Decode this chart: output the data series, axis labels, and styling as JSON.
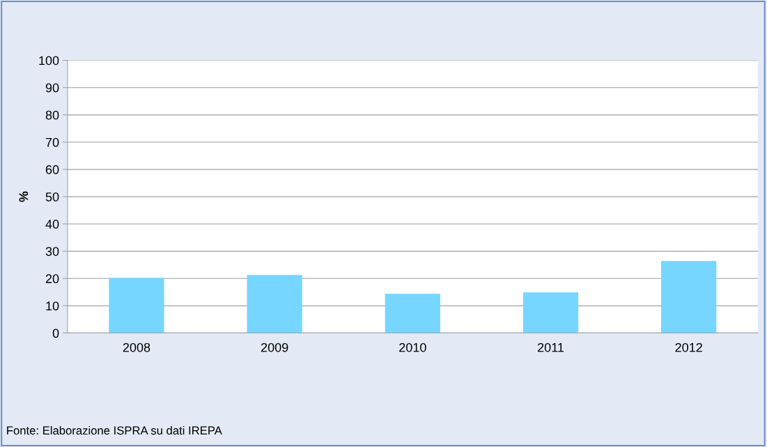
{
  "chart_data": {
    "type": "bar",
    "ylabel": "%",
    "categories": [
      "2008",
      "2009",
      "2010",
      "2011",
      "2012"
    ],
    "values": [
      20.2,
      21.3,
      14.4,
      14.9,
      26.4
    ],
    "color": "#76d6ff",
    "ylim": [
      0,
      100
    ],
    "yticks": [
      0,
      10,
      20,
      30,
      40,
      50,
      60,
      70,
      80,
      90,
      100
    ],
    "grid": "y",
    "legend": false,
    "annotations": [
      "Fonte: Elaborazione ISPRA su dati IREPA"
    ]
  }
}
